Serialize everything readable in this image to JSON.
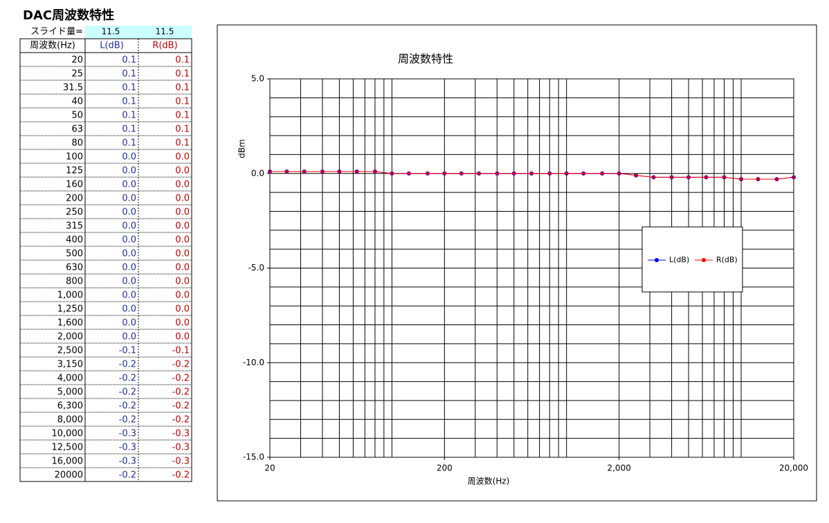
{
  "title": "DAC周波数特性",
  "slide": {
    "label": "スライド量=",
    "left": "11.5",
    "right": "11.5"
  },
  "table": {
    "headers": [
      "周波数(Hz)",
      "L(dB)",
      "R(dB)"
    ],
    "rows": [
      [
        "20",
        "0.1",
        "0.1"
      ],
      [
        "25",
        "0.1",
        "0.1"
      ],
      [
        "31.5",
        "0.1",
        "0.1"
      ],
      [
        "40",
        "0.1",
        "0.1"
      ],
      [
        "50",
        "0.1",
        "0.1"
      ],
      [
        "63",
        "0.1",
        "0.1"
      ],
      [
        "80",
        "0.1",
        "0.1"
      ],
      [
        "100",
        "0.0",
        "0.0"
      ],
      [
        "125",
        "0.0",
        "0.0"
      ],
      [
        "160",
        "0.0",
        "0.0"
      ],
      [
        "200",
        "0.0",
        "0.0"
      ],
      [
        "250",
        "0.0",
        "0.0"
      ],
      [
        "315",
        "0.0",
        "0.0"
      ],
      [
        "400",
        "0.0",
        "0.0"
      ],
      [
        "500",
        "0.0",
        "0.0"
      ],
      [
        "630",
        "0.0",
        "0.0"
      ],
      [
        "800",
        "0.0",
        "0.0"
      ],
      [
        "1,000",
        "0.0",
        "0.0"
      ],
      [
        "1,250",
        "0.0",
        "0.0"
      ],
      [
        "1,600",
        "0.0",
        "0.0"
      ],
      [
        "2,000",
        "0.0",
        "0.0"
      ],
      [
        "2,500",
        "-0.1",
        "-0.1"
      ],
      [
        "3,150",
        "-0.2",
        "-0.2"
      ],
      [
        "4,000",
        "-0.2",
        "-0.2"
      ],
      [
        "5,000",
        "-0.2",
        "-0.2"
      ],
      [
        "6,300",
        "-0.2",
        "-0.2"
      ],
      [
        "8,000",
        "-0.2",
        "-0.2"
      ],
      [
        "10,000",
        "-0.3",
        "-0.3"
      ],
      [
        "12,500",
        "-0.3",
        "-0.3"
      ],
      [
        "16,000",
        "-0.3",
        "-0.3"
      ],
      [
        "20000",
        "-0.2",
        "-0.2"
      ]
    ]
  },
  "chart_data": {
    "type": "line",
    "title": "周波数特性",
    "x_label": "周波数(Hz)",
    "y_label": "dBm",
    "x": [
      20,
      25,
      31.5,
      40,
      50,
      63,
      80,
      100,
      125,
      160,
      200,
      250,
      315,
      400,
      500,
      630,
      800,
      1000,
      1250,
      1600,
      2000,
      2500,
      3150,
      4000,
      5000,
      6300,
      8000,
      10000,
      12500,
      16000,
      20000
    ],
    "series": [
      {
        "name": "L(dB)",
        "color": "#0000ff",
        "values": [
          0.1,
          0.1,
          0.1,
          0.1,
          0.1,
          0.1,
          0.1,
          0,
          0,
          0,
          0,
          0,
          0,
          0,
          0,
          0,
          0,
          0,
          0,
          0,
          0,
          -0.1,
          -0.2,
          -0.2,
          -0.2,
          -0.2,
          -0.2,
          -0.3,
          -0.3,
          -0.3,
          -0.2
        ]
      },
      {
        "name": "R(dB)",
        "color": "#ff0000",
        "values": [
          0.1,
          0.1,
          0.1,
          0.1,
          0.1,
          0.1,
          0.1,
          0,
          0,
          0,
          0,
          0,
          0,
          0,
          0,
          0,
          0,
          0,
          0,
          0,
          0,
          -0.1,
          -0.2,
          -0.2,
          -0.2,
          -0.2,
          -0.2,
          -0.3,
          -0.3,
          -0.3,
          -0.2
        ]
      }
    ],
    "x_log": true,
    "xlim": [
      20,
      20000
    ],
    "xticks": [
      20,
      200,
      {
        "value": 2000,
        "label": "2,000"
      },
      {
        "value": 20000,
        "label": "20,000"
      }
    ],
    "ylim": [
      -15,
      5
    ],
    "yticks": [
      {
        "value": 5,
        "label": "5.0"
      },
      {
        "value": 0,
        "label": "0.0"
      },
      {
        "value": -5,
        "label": "-5.0"
      },
      {
        "value": -10,
        "label": "-10.0"
      },
      {
        "value": -15,
        "label": "-15.0"
      }
    ],
    "grid": true,
    "ygrid_interval": 1,
    "legend": "right"
  }
}
